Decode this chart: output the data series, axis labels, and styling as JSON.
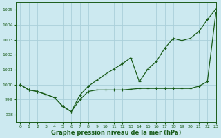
{
  "title": "Graphe pression niveau de la mer (hPa)",
  "background_color": "#cce9f0",
  "grid_color": "#aacfda",
  "line_color": "#1a5c1a",
  "xlim": [
    -0.5,
    23
  ],
  "ylim": [
    997.5,
    1005.5
  ],
  "yticks": [
    998,
    999,
    1000,
    1001,
    1002,
    1003,
    1004,
    1005
  ],
  "xticks": [
    0,
    1,
    2,
    3,
    4,
    5,
    6,
    7,
    8,
    9,
    10,
    11,
    12,
    13,
    14,
    15,
    16,
    17,
    18,
    19,
    20,
    21,
    22,
    23
  ],
  "line1_x": [
    0,
    1,
    2,
    3,
    4,
    5,
    6,
    7,
    8,
    9,
    10,
    11,
    12,
    13,
    14,
    15,
    16,
    17,
    18,
    19,
    20,
    21,
    22,
    23
  ],
  "line1_y": [
    1000.0,
    999.65,
    999.55,
    999.35,
    999.15,
    998.55,
    998.2,
    999.0,
    999.55,
    999.65,
    999.65,
    999.65,
    999.65,
    999.7,
    999.75,
    999.75,
    999.75,
    999.75,
    999.75,
    999.75,
    999.75,
    999.9,
    1000.2,
    1004.8
  ],
  "line2_x": [
    0,
    1,
    2,
    3,
    4,
    5,
    6,
    7,
    8,
    9,
    10,
    11,
    12,
    13,
    14,
    15,
    16,
    17,
    18,
    19,
    20,
    21,
    22,
    23
  ],
  "line2_y": [
    1000.0,
    999.65,
    999.55,
    999.35,
    999.15,
    998.55,
    998.2,
    999.3,
    999.9,
    1000.3,
    1000.7,
    1001.05,
    1001.4,
    1001.8,
    1000.2,
    1001.05,
    1001.55,
    1002.45,
    1003.1,
    1002.95,
    1003.1,
    1003.55,
    1004.35,
    1005.05
  ],
  "marker": "+",
  "marker_size": 3,
  "marker_lw": 0.8,
  "line_width": 0.9,
  "xlabel_fontsize": 6.0,
  "tick_fontsize": 4.5
}
